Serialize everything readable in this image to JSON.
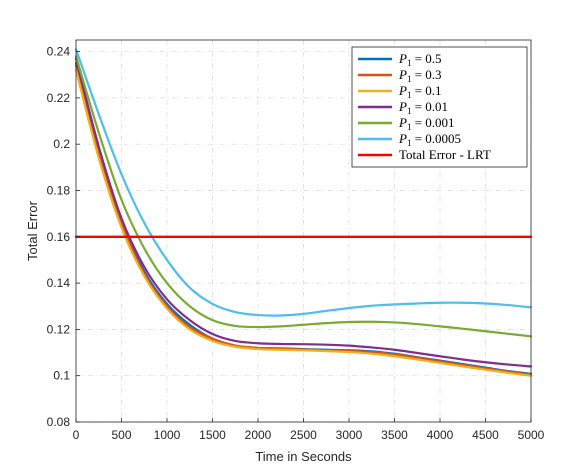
{
  "chart_data": {
    "type": "line",
    "title": "",
    "xlabel": "Time in Seconds",
    "ylabel": "Total Error",
    "xlim": [
      0,
      5000
    ],
    "ylim": [
      0.08,
      0.245
    ],
    "xticks": [
      0,
      500,
      1000,
      1500,
      2000,
      2500,
      3000,
      3500,
      4000,
      4500,
      5000
    ],
    "yticks": [
      0.08,
      0.1,
      0.12,
      0.14,
      0.16,
      0.18,
      0.2,
      0.22,
      0.24
    ],
    "grid": true,
    "legend_position": "top-right",
    "x": [
      0,
      250,
      500,
      750,
      1000,
      1250,
      1500,
      1750,
      2000,
      2250,
      2500,
      2750,
      3000,
      3250,
      3500,
      3750,
      4000,
      4250,
      4500,
      4750,
      5000
    ],
    "series": [
      {
        "name": "P_1 = 0.5",
        "color": "#0072BD",
        "values": [
          0.235,
          0.197,
          0.167,
          0.145,
          0.131,
          0.122,
          0.116,
          0.113,
          0.112,
          0.1118,
          0.1115,
          0.1112,
          0.111,
          0.1105,
          0.1095,
          0.108,
          0.1065,
          0.105,
          0.1035,
          0.102,
          0.1008
        ]
      },
      {
        "name": "P_1 = 0.3",
        "color": "#D95319",
        "values": [
          0.234,
          0.196,
          0.166,
          0.144,
          0.13,
          0.121,
          0.116,
          0.113,
          0.112,
          0.1116,
          0.1113,
          0.111,
          0.1108,
          0.1102,
          0.1092,
          0.1078,
          0.1062,
          0.1047,
          0.1032,
          0.1018,
          0.1005
        ]
      },
      {
        "name": "P_1 = 0.1",
        "color": "#EDB120",
        "values": [
          0.232,
          0.194,
          0.164,
          0.143,
          0.129,
          0.12,
          0.115,
          0.1125,
          0.1115,
          0.1112,
          0.111,
          0.1106,
          0.1102,
          0.1095,
          0.1084,
          0.107,
          0.1055,
          0.104,
          0.1026,
          0.1012,
          0.1
        ]
      },
      {
        "name": "P_1 = 0.01",
        "color": "#7E2F8E",
        "values": [
          0.237,
          0.199,
          0.168,
          0.147,
          0.133,
          0.124,
          0.118,
          0.115,
          0.114,
          0.1137,
          0.1136,
          0.1134,
          0.113,
          0.1122,
          0.1112,
          0.1098,
          0.1084,
          0.107,
          0.1058,
          0.1048,
          0.104
        ]
      },
      {
        "name": "P_1 = 0.001",
        "color": "#77AC30",
        "values": [
          0.238,
          0.205,
          0.176,
          0.155,
          0.14,
          0.13,
          0.124,
          0.1215,
          0.121,
          0.1213,
          0.122,
          0.1227,
          0.1232,
          0.1233,
          0.123,
          0.1223,
          0.1213,
          0.1203,
          0.1192,
          0.1181,
          0.117
        ]
      },
      {
        "name": "P_1 = 0.0005",
        "color": "#4DBEEE",
        "values": [
          0.241,
          0.213,
          0.187,
          0.166,
          0.15,
          0.138,
          0.131,
          0.1275,
          0.1262,
          0.126,
          0.1267,
          0.128,
          0.1292,
          0.1302,
          0.1308,
          0.1312,
          0.1315,
          0.1315,
          0.1312,
          0.1305,
          0.1295
        ]
      },
      {
        "name": "Total Error - LRT",
        "color": "#FF0000",
        "values": [
          0.16,
          0.16,
          0.16,
          0.16,
          0.16,
          0.16,
          0.16,
          0.16,
          0.16,
          0.16,
          0.16,
          0.16,
          0.16,
          0.16,
          0.16,
          0.16,
          0.16,
          0.16,
          0.16,
          0.16,
          0.16
        ]
      }
    ],
    "legend": [
      {
        "prefix": "P",
        "sub": "1",
        "value": " = 0.5"
      },
      {
        "prefix": "P",
        "sub": "1",
        "value": " = 0.3"
      },
      {
        "prefix": "P",
        "sub": "1",
        "value": " = 0.1"
      },
      {
        "prefix": "P",
        "sub": "1",
        "value": " = 0.01"
      },
      {
        "prefix": "P",
        "sub": "1",
        "value": " = 0.001"
      },
      {
        "prefix": "P",
        "sub": "1",
        "value": " = 0.0005"
      },
      {
        "prefix": "",
        "sub": "",
        "value": "Total Error - LRT"
      }
    ]
  }
}
